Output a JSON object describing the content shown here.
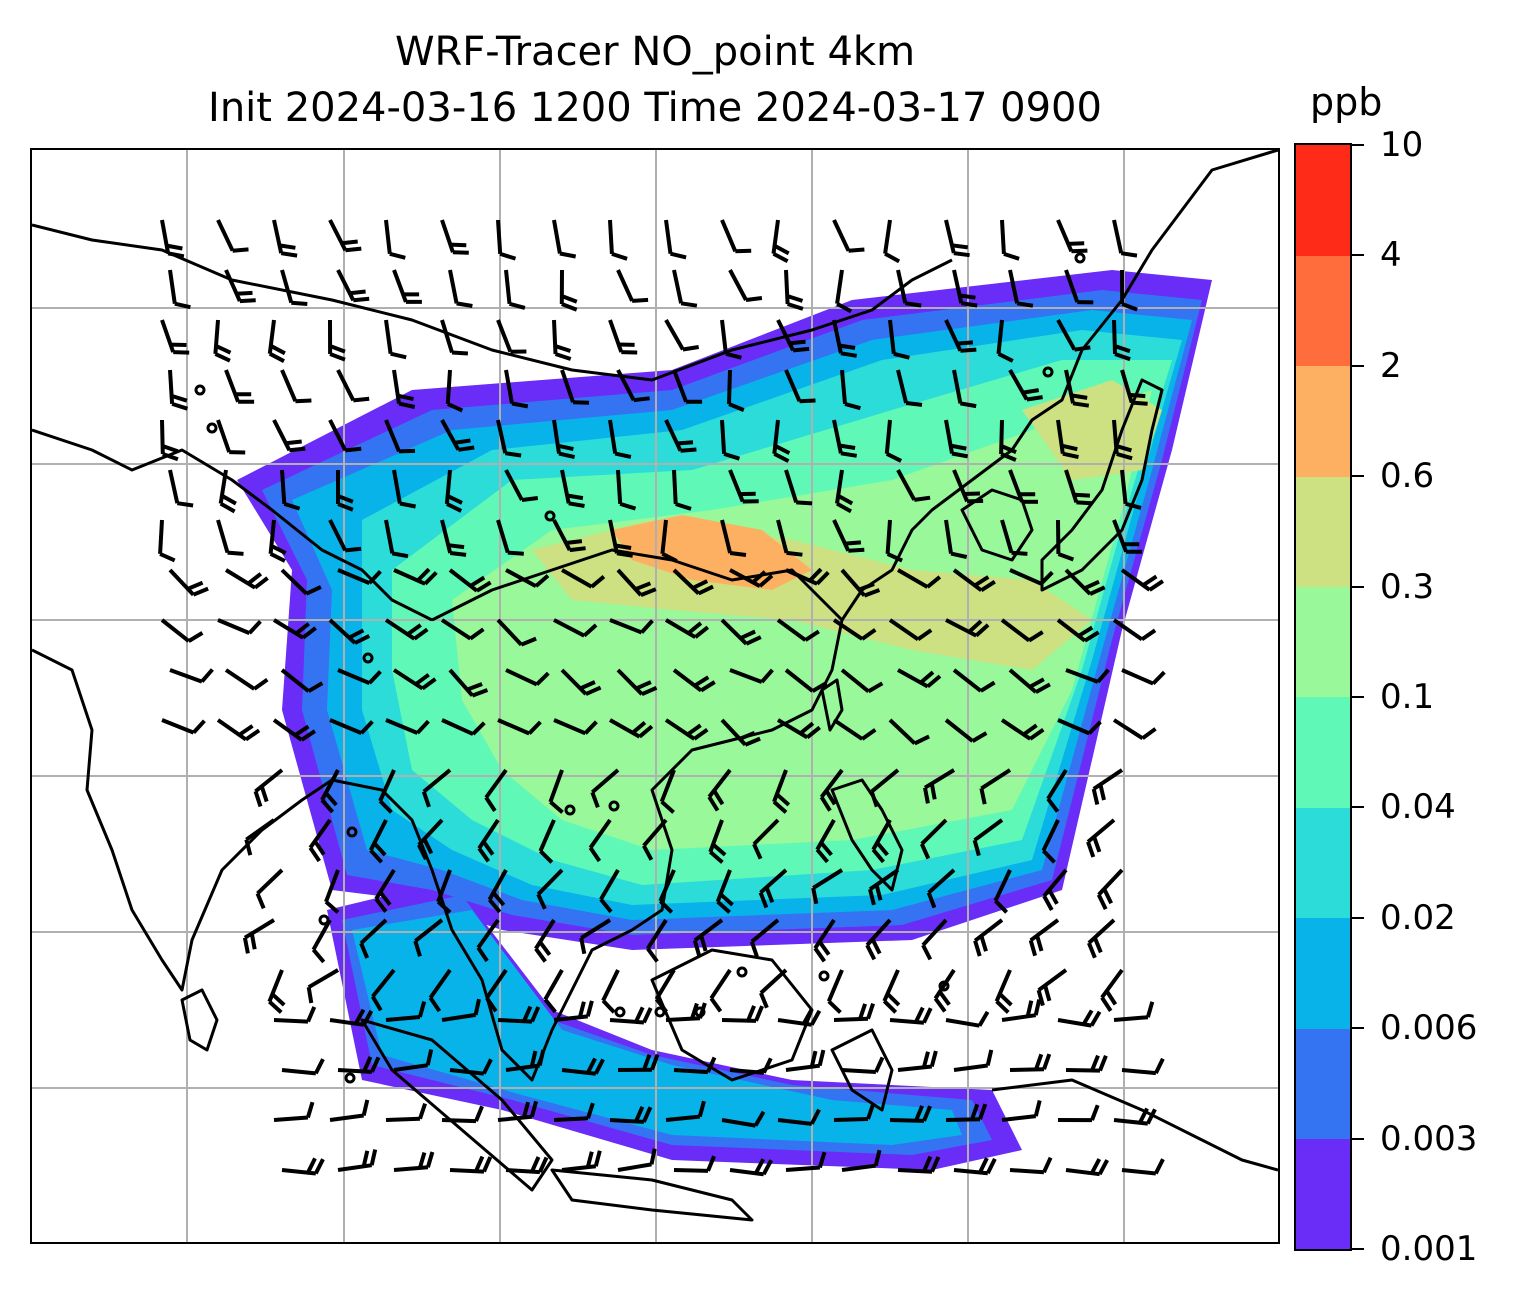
{
  "title": {
    "line1": "WRF-Tracer NO_point 4km",
    "line2": "Init 2024-03-16 1200 Time 2024-03-17 0900"
  },
  "colorbar": {
    "unit": "ppb",
    "levels": [
      "0.001",
      "0.003",
      "0.006",
      "0.02",
      "0.04",
      "0.1",
      "0.3",
      "0.6",
      "2",
      "4",
      "10"
    ],
    "colors": [
      "#6a2cf7",
      "#3474f3",
      "#08b3ea",
      "#2bdcd8",
      "#60f8b6",
      "#98f89a",
      "#cde082",
      "#fdb061",
      "#fe6d3b",
      "#fd2b18"
    ]
  },
  "map": {
    "type": "filled-contour map with wind barbs and coastlines",
    "projection_gridlines": true,
    "wind_barbs": true,
    "station_markers": true,
    "accent_colors": {
      "coastline": "#000000",
      "gridline": "#b0b0b0"
    }
  }
}
